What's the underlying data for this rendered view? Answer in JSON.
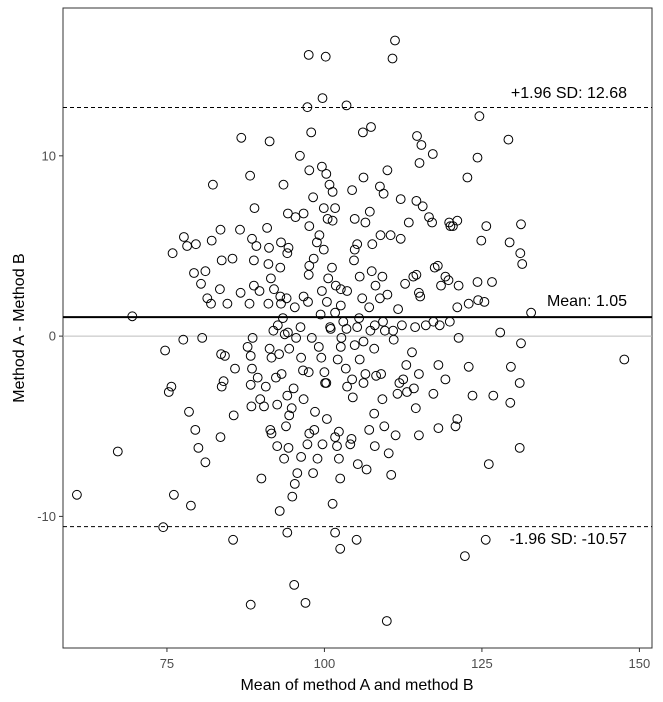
{
  "chart_data": {
    "type": "scatter",
    "title": "",
    "xlabel": "Mean of method A and method B",
    "ylabel": "Method A - Method B",
    "xlim": [
      58.5,
      152
    ],
    "ylim": [
      -17.3,
      18.2
    ],
    "xticks": [
      75,
      100,
      125,
      150
    ],
    "yticks": [
      -10,
      0,
      10
    ],
    "grid": false,
    "reference_lines": {
      "zero": 0,
      "mean": {
        "value": 1.05,
        "label": "Mean: 1.05"
      },
      "upper": {
        "value": 12.68,
        "label": "+1.96 SD: 12.68"
      },
      "lower": {
        "value": -10.57,
        "label": "-1.96 SD: -10.57"
      }
    },
    "points": [
      [
        111.2,
        16.4
      ],
      [
        97.5,
        15.6
      ],
      [
        100.2,
        15.5
      ],
      [
        110.8,
        15.4
      ],
      [
        99.7,
        13.2
      ],
      [
        103.5,
        12.8
      ],
      [
        97.3,
        12.7
      ],
      [
        124.6,
        12.2
      ],
      [
        107.4,
        11.6
      ],
      [
        86.8,
        11.0
      ],
      [
        114.7,
        11.1
      ],
      [
        91.3,
        10.8
      ],
      [
        129.2,
        10.9
      ],
      [
        106.1,
        11.3
      ],
      [
        97.9,
        11.3
      ],
      [
        115.4,
        10.6
      ],
      [
        117.2,
        10.1
      ],
      [
        96.1,
        10.0
      ],
      [
        124.3,
        9.9
      ],
      [
        99.6,
        9.4
      ],
      [
        100.3,
        9.0
      ],
      [
        110.0,
        9.2
      ],
      [
        115.1,
        9.6
      ],
      [
        88.2,
        8.9
      ],
      [
        97.6,
        9.2
      ],
      [
        122.7,
        8.8
      ],
      [
        106.2,
        8.8
      ],
      [
        82.3,
        8.4
      ],
      [
        93.5,
        8.4
      ],
      [
        100.8,
        8.4
      ],
      [
        101.3,
        8.0
      ],
      [
        104.4,
        8.1
      ],
      [
        109.4,
        7.9
      ],
      [
        98.2,
        7.7
      ],
      [
        108.8,
        8.3
      ],
      [
        112.1,
        7.6
      ],
      [
        114.6,
        7.5
      ],
      [
        88.9,
        7.1
      ],
      [
        101.7,
        7.1
      ],
      [
        107.2,
        6.9
      ],
      [
        96.7,
        6.8
      ],
      [
        94.2,
        6.8
      ],
      [
        99.9,
        7.1
      ],
      [
        115.6,
        7.2
      ],
      [
        104.8,
        6.5
      ],
      [
        100.5,
        6.5
      ],
      [
        95.4,
        6.6
      ],
      [
        101.3,
        6.4
      ],
      [
        106.5,
        6.3
      ],
      [
        113.4,
        6.3
      ],
      [
        116.6,
        6.6
      ],
      [
        117.1,
        6.3
      ],
      [
        119.8,
        6.3
      ],
      [
        121.1,
        6.4
      ],
      [
        125.7,
        6.1
      ],
      [
        131.2,
        6.2
      ],
      [
        90.9,
        6.0
      ],
      [
        86.6,
        5.9
      ],
      [
        88.5,
        5.4
      ],
      [
        93.1,
        5.2
      ],
      [
        97.6,
        6.1
      ],
      [
        99.2,
        5.6
      ],
      [
        98.8,
        5.2
      ],
      [
        108.9,
        5.6
      ],
      [
        110.5,
        5.6
      ],
      [
        112.1,
        5.4
      ],
      [
        120.4,
        6.1
      ],
      [
        120.0,
        6.1
      ],
      [
        124.9,
        5.3
      ],
      [
        129.4,
        5.2
      ],
      [
        131.1,
        4.6
      ],
      [
        131.4,
        4.0
      ],
      [
        77.7,
        5.5
      ],
      [
        78.2,
        5.0
      ],
      [
        79.6,
        5.1
      ],
      [
        82.1,
        5.3
      ],
      [
        83.5,
        5.9
      ],
      [
        89.2,
        5.0
      ],
      [
        91.2,
        4.9
      ],
      [
        94.3,
        4.9
      ],
      [
        99.9,
        4.8
      ],
      [
        104.8,
        4.8
      ],
      [
        105.2,
        5.1
      ],
      [
        107.6,
        5.1
      ],
      [
        75.9,
        4.6
      ],
      [
        83.7,
        4.2
      ],
      [
        85.4,
        4.3
      ],
      [
        88.8,
        4.2
      ],
      [
        91.1,
        4.0
      ],
      [
        94.1,
        4.6
      ],
      [
        97.6,
        3.9
      ],
      [
        101.2,
        3.8
      ],
      [
        104.7,
        4.2
      ],
      [
        98.3,
        4.3
      ],
      [
        118.0,
        3.9
      ],
      [
        117.5,
        3.8
      ],
      [
        79.3,
        3.5
      ],
      [
        81.1,
        3.6
      ],
      [
        91.5,
        3.2
      ],
      [
        93.0,
        3.8
      ],
      [
        97.5,
        3.4
      ],
      [
        100.6,
        3.2
      ],
      [
        105.6,
        3.3
      ],
      [
        107.5,
        3.6
      ],
      [
        109.2,
        3.3
      ],
      [
        114.1,
        3.3
      ],
      [
        114.6,
        3.4
      ],
      [
        119.2,
        3.3
      ],
      [
        119.7,
        3.1
      ],
      [
        124.3,
        3.0
      ],
      [
        126.6,
        3.0
      ],
      [
        80.4,
        2.9
      ],
      [
        83.4,
        2.6
      ],
      [
        88.8,
        2.8
      ],
      [
        92.0,
        2.6
      ],
      [
        101.8,
        2.8
      ],
      [
        102.6,
        2.6
      ],
      [
        108.1,
        2.8
      ],
      [
        110.0,
        2.3
      ],
      [
        112.8,
        2.9
      ],
      [
        118.5,
        2.8
      ],
      [
        121.3,
        2.8
      ],
      [
        124.4,
        2.0
      ],
      [
        81.4,
        2.1
      ],
      [
        82.0,
        1.8
      ],
      [
        86.7,
        2.4
      ],
      [
        89.7,
        2.5
      ],
      [
        93.0,
        2.2
      ],
      [
        94.0,
        2.1
      ],
      [
        96.7,
        2.2
      ],
      [
        99.6,
        2.5
      ],
      [
        103.6,
        2.5
      ],
      [
        106.0,
        2.1
      ],
      [
        108.8,
        2.1
      ],
      [
        115.2,
        2.2
      ],
      [
        115.0,
        2.4
      ],
      [
        125.4,
        1.9
      ],
      [
        84.6,
        1.8
      ],
      [
        88.1,
        1.8
      ],
      [
        91.1,
        1.8
      ],
      [
        93.1,
        1.8
      ],
      [
        95.3,
        1.6
      ],
      [
        97.4,
        1.9
      ],
      [
        100.4,
        1.9
      ],
      [
        102.6,
        1.7
      ],
      [
        107.1,
        1.6
      ],
      [
        111.7,
        1.5
      ],
      [
        121.1,
        1.6
      ],
      [
        122.9,
        1.8
      ],
      [
        132.8,
        1.3
      ],
      [
        69.5,
        1.1
      ],
      [
        93.4,
        1.0
      ],
      [
        99.4,
        1.2
      ],
      [
        101.7,
        1.3
      ],
      [
        103.0,
        0.8
      ],
      [
        105.5,
        1.0
      ],
      [
        109.3,
        0.8
      ],
      [
        117.3,
        0.8
      ],
      [
        92.6,
        0.6
      ],
      [
        96.2,
        0.5
      ],
      [
        100.9,
        0.5
      ],
      [
        105.2,
        0.5
      ],
      [
        108.0,
        0.6
      ],
      [
        112.3,
        0.6
      ],
      [
        116.1,
        0.6
      ],
      [
        119.9,
        0.8
      ],
      [
        91.9,
        0.3
      ],
      [
        94.2,
        0.2
      ],
      [
        101.0,
        0.4
      ],
      [
        103.5,
        0.4
      ],
      [
        107.3,
        0.3
      ],
      [
        109.6,
        0.3
      ],
      [
        110.9,
        0.3
      ],
      [
        114.4,
        0.5
      ],
      [
        118.3,
        0.6
      ],
      [
        127.9,
        0.2
      ],
      [
        88.6,
        -0.1
      ],
      [
        93.7,
        0.1
      ],
      [
        95.5,
        -0.1
      ],
      [
        98.0,
        -0.1
      ],
      [
        102.7,
        -0.1
      ],
      [
        106.2,
        -0.3
      ],
      [
        111.0,
        -0.2
      ],
      [
        121.3,
        -0.1
      ],
      [
        131.2,
        -0.4
      ],
      [
        77.6,
        -0.2
      ],
      [
        80.6,
        -0.1
      ],
      [
        83.6,
        -1.0
      ],
      [
        87.8,
        -0.6
      ],
      [
        91.3,
        -0.7
      ],
      [
        92.8,
        -1.0
      ],
      [
        94.4,
        -0.7
      ],
      [
        99.1,
        -0.6
      ],
      [
        102.6,
        -0.6
      ],
      [
        104.8,
        -0.5
      ],
      [
        107.9,
        -0.7
      ],
      [
        113.9,
        -0.9
      ],
      [
        74.7,
        -0.8
      ],
      [
        84.2,
        -1.1
      ],
      [
        88.3,
        -1.1
      ],
      [
        91.6,
        -1.2
      ],
      [
        96.3,
        -1.2
      ],
      [
        99.5,
        -1.2
      ],
      [
        102.1,
        -1.3
      ],
      [
        105.6,
        -1.3
      ],
      [
        113.0,
        -1.6
      ],
      [
        118.1,
        -1.6
      ],
      [
        122.9,
        -1.7
      ],
      [
        129.6,
        -1.7
      ],
      [
        147.6,
        -1.3
      ],
      [
        85.8,
        -1.8
      ],
      [
        88.5,
        -1.8
      ],
      [
        93.2,
        -2.1
      ],
      [
        96.6,
        -1.9
      ],
      [
        100.0,
        -2.0
      ],
      [
        103.4,
        -1.8
      ],
      [
        106.5,
        -2.1
      ],
      [
        109.0,
        -2.1
      ],
      [
        112.5,
        -2.4
      ],
      [
        115.0,
        -2.1
      ],
      [
        89.4,
        -2.3
      ],
      [
        92.3,
        -2.3
      ],
      [
        97.5,
        -2.0
      ],
      [
        100.1,
        -2.6
      ],
      [
        104.4,
        -2.4
      ],
      [
        108.2,
        -2.2
      ],
      [
        111.9,
        -2.6
      ],
      [
        114.2,
        -2.9
      ],
      [
        119.2,
        -2.4
      ],
      [
        131.0,
        -2.6
      ],
      [
        75.7,
        -2.8
      ],
      [
        83.7,
        -2.8
      ],
      [
        84.0,
        -2.5
      ],
      [
        88.3,
        -2.7
      ],
      [
        90.7,
        -2.8
      ],
      [
        95.1,
        -2.9
      ],
      [
        100.3,
        -2.6
      ],
      [
        103.6,
        -2.8
      ],
      [
        106.2,
        -2.6
      ],
      [
        113.1,
        -3.1
      ],
      [
        75.3,
        -3.1
      ],
      [
        89.8,
        -3.5
      ],
      [
        94.1,
        -3.3
      ],
      [
        96.7,
        -3.5
      ],
      [
        104.5,
        -3.4
      ],
      [
        109.2,
        -3.5
      ],
      [
        111.6,
        -3.2
      ],
      [
        117.3,
        -3.2
      ],
      [
        123.5,
        -3.3
      ],
      [
        126.8,
        -3.3
      ],
      [
        129.5,
        -3.7
      ],
      [
        88.4,
        -3.9
      ],
      [
        90.4,
        -3.9
      ],
      [
        92.5,
        -3.8
      ],
      [
        94.8,
        -4.0
      ],
      [
        98.5,
        -4.2
      ],
      [
        114.5,
        -4.0
      ],
      [
        78.5,
        -4.2
      ],
      [
        85.6,
        -4.4
      ],
      [
        94.4,
        -4.4
      ],
      [
        100.4,
        -4.6
      ],
      [
        107.9,
        -4.3
      ],
      [
        121.1,
        -4.6
      ],
      [
        79.5,
        -5.2
      ],
      [
        91.4,
        -5.2
      ],
      [
        93.9,
        -5.0
      ],
      [
        98.4,
        -5.2
      ],
      [
        102.3,
        -5.3
      ],
      [
        107.1,
        -5.2
      ],
      [
        109.5,
        -5.0
      ],
      [
        118.1,
        -5.1
      ],
      [
        120.8,
        -5.0
      ],
      [
        83.5,
        -5.6
      ],
      [
        91.6,
        -5.4
      ],
      [
        97.6,
        -5.4
      ],
      [
        101.7,
        -5.6
      ],
      [
        104.3,
        -5.7
      ],
      [
        111.3,
        -5.5
      ],
      [
        115.0,
        -5.5
      ],
      [
        80.0,
        -6.2
      ],
      [
        92.5,
        -6.1
      ],
      [
        94.3,
        -6.2
      ],
      [
        97.3,
        -6.0
      ],
      [
        99.7,
        -6.0
      ],
      [
        102.0,
        -6.1
      ],
      [
        104.1,
        -6.0
      ],
      [
        108.0,
        -6.1
      ],
      [
        131.0,
        -6.2
      ],
      [
        67.2,
        -6.4
      ],
      [
        81.1,
        -7.0
      ],
      [
        93.6,
        -6.8
      ],
      [
        96.3,
        -6.7
      ],
      [
        98.9,
        -6.8
      ],
      [
        102.3,
        -6.8
      ],
      [
        105.3,
        -7.1
      ],
      [
        110.2,
        -6.5
      ],
      [
        126.1,
        -7.1
      ],
      [
        95.7,
        -7.6
      ],
      [
        98.2,
        -7.6
      ],
      [
        102.5,
        -7.9
      ],
      [
        106.7,
        -7.4
      ],
      [
        110.6,
        -7.7
      ],
      [
        90.0,
        -7.9
      ],
      [
        95.3,
        -8.2
      ],
      [
        60.7,
        -8.8
      ],
      [
        76.1,
        -8.8
      ],
      [
        94.9,
        -8.9
      ],
      [
        78.8,
        -9.4
      ],
      [
        92.9,
        -9.7
      ],
      [
        101.3,
        -9.3
      ],
      [
        74.4,
        -10.6
      ],
      [
        94.1,
        -10.9
      ],
      [
        101.7,
        -10.9
      ],
      [
        85.5,
        -11.3
      ],
      [
        102.5,
        -11.8
      ],
      [
        105.1,
        -11.3
      ],
      [
        125.6,
        -11.3
      ],
      [
        122.3,
        -12.2
      ],
      [
        95.2,
        -13.8
      ],
      [
        88.3,
        -14.9
      ],
      [
        97.0,
        -14.8
      ],
      [
        109.9,
        -15.8
      ]
    ]
  }
}
